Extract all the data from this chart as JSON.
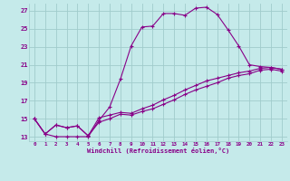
{
  "xlabel": "Windchill (Refroidissement éolien,°C)",
  "xlim": [
    -0.5,
    23.5
  ],
  "ylim": [
    12.5,
    27.8
  ],
  "yticks": [
    13,
    15,
    17,
    19,
    21,
    23,
    25,
    27
  ],
  "xticks": [
    0,
    1,
    2,
    3,
    4,
    5,
    6,
    7,
    8,
    9,
    10,
    11,
    12,
    13,
    14,
    15,
    16,
    17,
    18,
    19,
    20,
    21,
    22,
    23
  ],
  "bg_color": "#c5eaea",
  "grid_color": "#a0cccc",
  "line_color": "#880088",
  "curves": [
    {
      "x": [
        0,
        1,
        2,
        3,
        4,
        5,
        6,
        7,
        8,
        9,
        10,
        11,
        12,
        13,
        14,
        15,
        16,
        17,
        18,
        19,
        20,
        21,
        22,
        23
      ],
      "y": [
        15.0,
        13.3,
        13.0,
        13.0,
        13.0,
        13.0,
        14.8,
        16.3,
        19.4,
        23.1,
        25.2,
        25.3,
        26.7,
        26.7,
        26.5,
        27.3,
        27.4,
        26.6,
        24.9,
        23.1,
        21.0,
        20.8,
        20.7,
        20.5
      ]
    },
    {
      "x": [
        0,
        1,
        2,
        3,
        4,
        5,
        6,
        7,
        8,
        9,
        10,
        11,
        12,
        13,
        14,
        15,
        16,
        17,
        18,
        19,
        20,
        21,
        22,
        23
      ],
      "y": [
        15.0,
        13.3,
        14.3,
        14.0,
        14.2,
        13.1,
        15.1,
        15.4,
        15.7,
        15.6,
        16.1,
        16.5,
        17.1,
        17.6,
        18.2,
        18.7,
        19.2,
        19.5,
        19.8,
        20.1,
        20.3,
        20.6,
        20.7,
        20.5
      ]
    },
    {
      "x": [
        0,
        1,
        2,
        3,
        4,
        5,
        6,
        7,
        8,
        9,
        10,
        11,
        12,
        13,
        14,
        15,
        16,
        17,
        18,
        19,
        20,
        21,
        22,
        23
      ],
      "y": [
        15.0,
        13.3,
        14.3,
        14.0,
        14.2,
        13.1,
        14.6,
        15.0,
        15.5,
        15.4,
        15.8,
        16.1,
        16.6,
        17.1,
        17.7,
        18.2,
        18.6,
        19.0,
        19.5,
        19.8,
        20.0,
        20.4,
        20.5,
        20.3
      ]
    }
  ]
}
